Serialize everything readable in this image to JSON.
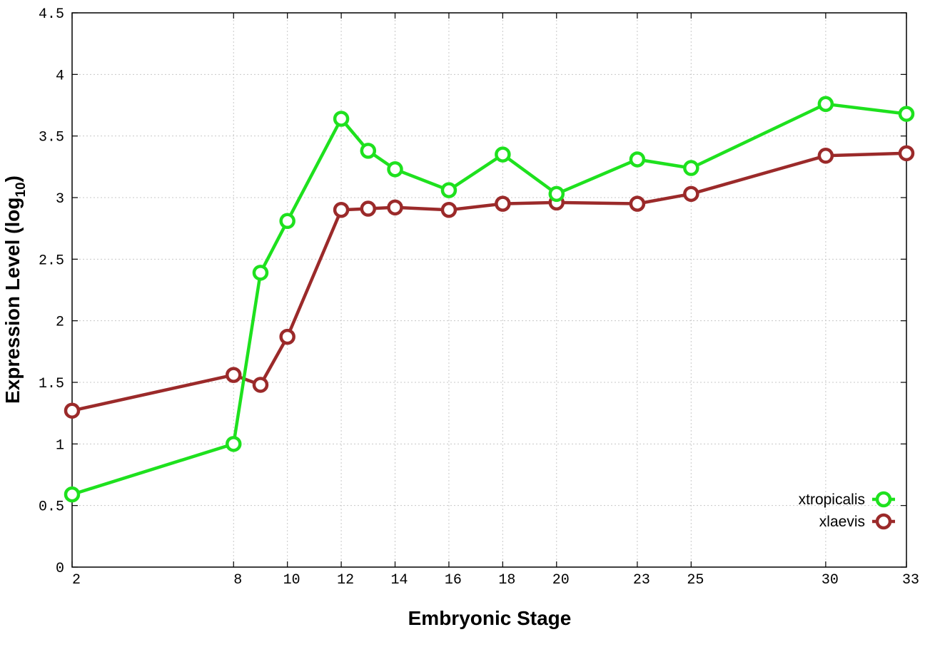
{
  "chart_data": {
    "type": "line",
    "title": "",
    "xlabel": "Embryonic Stage",
    "ylabel": "Expression Level (log",
    "ylabel_subscript": "10",
    "ylabel_close": ")",
    "xlim": [
      2,
      33
    ],
    "ylim": [
      0,
      4.5
    ],
    "x": [
      2,
      8,
      9,
      10,
      12,
      13,
      14,
      16,
      18,
      20,
      23,
      25,
      30,
      33
    ],
    "x_ticks": [
      2,
      8,
      10,
      12,
      14,
      16,
      18,
      20,
      23,
      25,
      30,
      33
    ],
    "x_tick_labels": [
      "2",
      "8",
      "10",
      "12",
      "14",
      "16",
      "18",
      "20",
      "23",
      "25",
      "30",
      "33"
    ],
    "y_ticks": [
      0,
      0.5,
      1,
      1.5,
      2,
      2.5,
      3,
      3.5,
      4,
      4.5
    ],
    "y_tick_labels": [
      "0",
      "0.5",
      "1",
      "1.5",
      "2",
      "2.5",
      "3",
      "3.5",
      "4",
      "4.5"
    ],
    "grid": true,
    "legend_position": "bottom-right",
    "series": [
      {
        "name": "xtropicalis",
        "color": "#1ee11e",
        "values": [
          0.59,
          1.0,
          2.39,
          2.81,
          3.64,
          3.38,
          3.23,
          3.06,
          3.35,
          3.03,
          3.31,
          3.24,
          3.76,
          3.68
        ]
      },
      {
        "name": "xlaevis",
        "color": "#9b2a2a",
        "values": [
          1.27,
          1.56,
          1.48,
          1.87,
          2.9,
          2.91,
          2.92,
          2.9,
          2.95,
          2.96,
          2.95,
          3.03,
          3.34,
          3.36
        ]
      }
    ]
  }
}
